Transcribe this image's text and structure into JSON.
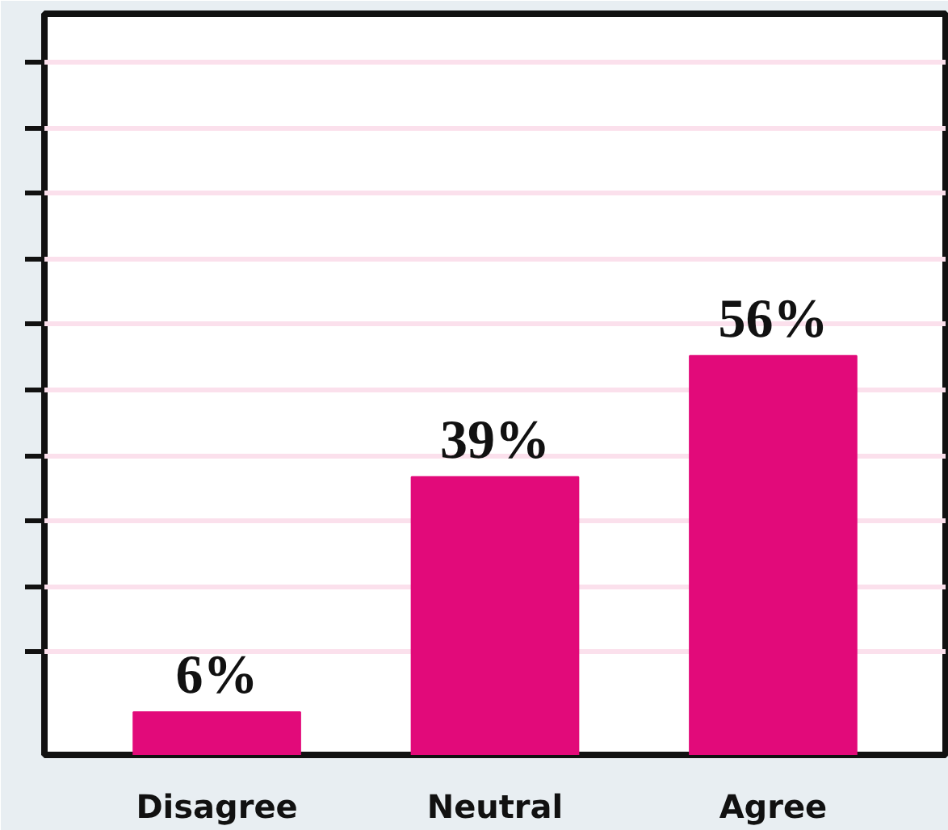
{
  "chart_data": {
    "type": "bar",
    "categories": [
      "Disagree",
      "Neutral",
      "Agree"
    ],
    "values": [
      6,
      39,
      56
    ],
    "color": "#e20a7a",
    "data_labels": true,
    "value_labels": [
      "6%",
      "39%",
      "56%"
    ],
    "ylim": [
      0,
      104
    ],
    "yticks": [
      {
        "value": 14.4,
        "label": null
      },
      {
        "value": 23.6,
        "label": null
      },
      {
        "value": 32.8,
        "label": null
      },
      {
        "value": 42,
        "label": null
      },
      {
        "value": 51.2,
        "label": null
      },
      {
        "value": 60.4,
        "label": null
      },
      {
        "value": 69.6,
        "label": null
      },
      {
        "value": 78.8,
        "label": null
      },
      {
        "value": 88,
        "label": null
      },
      {
        "value": 97.2,
        "label": null
      }
    ],
    "grid": "y",
    "tick_labels": "x"
  }
}
